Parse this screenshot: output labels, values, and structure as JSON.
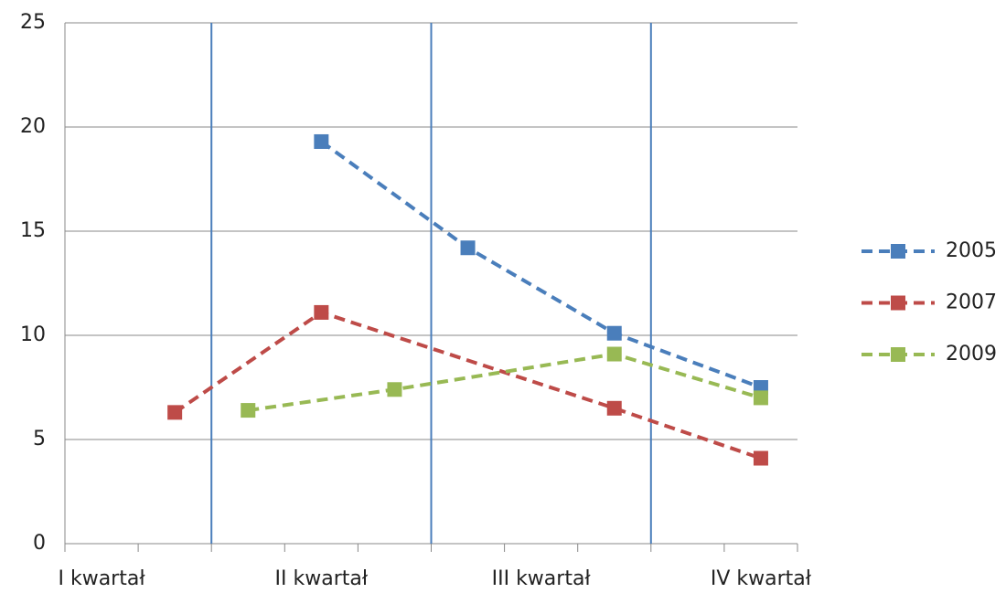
{
  "chart_data": {
    "type": "line",
    "xlim": [
      0,
      10
    ],
    "xticks": [
      0,
      1,
      2,
      3,
      4,
      5,
      6,
      7,
      8,
      9,
      10
    ],
    "x_labels": [
      {
        "value": 0.5,
        "label": "I kwartał"
      },
      {
        "value": 3.5,
        "label": "II kwartał"
      },
      {
        "value": 6.5,
        "label": "III kwartał"
      },
      {
        "value": 9.5,
        "label": "IV kwartał"
      }
    ],
    "vlines": [
      2,
      5,
      8
    ],
    "vline_color": "#4a7ebb",
    "ylim": [
      0,
      25
    ],
    "yticks": [
      0,
      5,
      10,
      15,
      20,
      25
    ],
    "grid": true,
    "legend": "right",
    "series": [
      {
        "name": "2005",
        "color": "#4a7ebb",
        "x": [
          3.5,
          5.5,
          7.5,
          9.5
        ],
        "values": [
          19.3,
          14.2,
          10.1,
          7.5
        ]
      },
      {
        "name": "2007",
        "color": "#be4b48",
        "x": [
          1.5,
          3.5,
          7.5,
          9.5
        ],
        "values": [
          6.3,
          11.1,
          6.5,
          4.1
        ]
      },
      {
        "name": "2009",
        "color": "#98b954",
        "x": [
          2.5,
          4.5,
          7.5,
          9.5
        ],
        "values": [
          6.4,
          7.4,
          9.1,
          7.0
        ]
      }
    ]
  }
}
